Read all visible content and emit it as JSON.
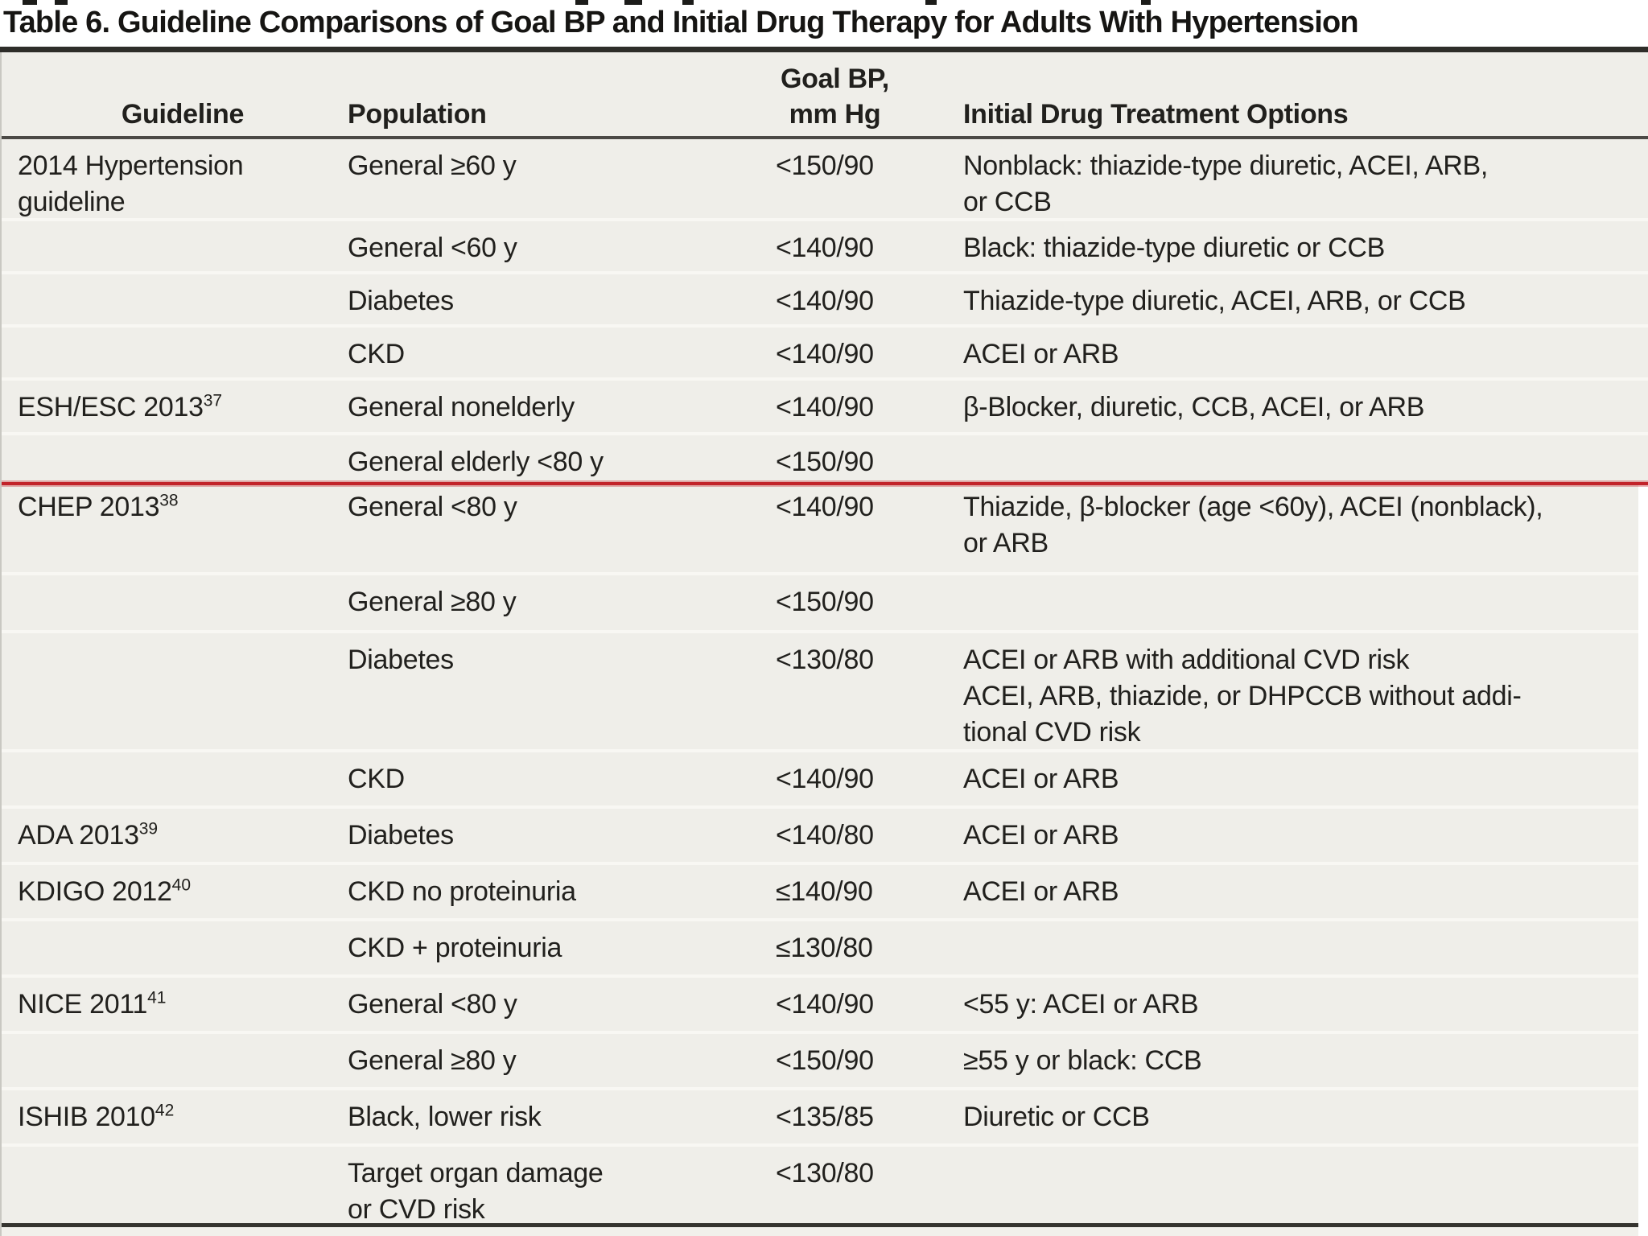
{
  "title": "Table 6. Guideline Comparisons of Goal BP and Initial Drug Therapy for Adults With Hypertension",
  "columns": {
    "guideline": "Guideline",
    "population": "Population",
    "goal_bp_line1": "Goal BP,",
    "goal_bp_line2": "mm Hg",
    "treatment": "Initial Drug Treatment Options"
  },
  "colors": {
    "table_background": "#efeee9",
    "row_separator": "#f8f7f3",
    "title_rule": "#2e2d29",
    "header_rule": "#4b4945",
    "bottom_rule": "#35342f",
    "red_divider": "#c2232a",
    "text": "#21201d"
  },
  "red_divider_after_row_index": 5,
  "rows": [
    {
      "guideline": "2014 Hypertension\nguideline",
      "guideline_sup": "",
      "population": "General ≥60 y",
      "goal": "<150/90",
      "treatment": "Nonblack: thiazide-type diuretic, ACEI, ARB,\nor CCB"
    },
    {
      "guideline": "",
      "guideline_sup": "",
      "population": "General <60 y",
      "goal": "<140/90",
      "treatment": "Black: thiazide-type diuretic or CCB"
    },
    {
      "guideline": "",
      "guideline_sup": "",
      "population": "Diabetes",
      "goal": "<140/90",
      "treatment": "Thiazide-type diuretic, ACEI, ARB, or CCB"
    },
    {
      "guideline": "",
      "guideline_sup": "",
      "population": "CKD",
      "goal": "<140/90",
      "treatment": "ACEI or ARB"
    },
    {
      "guideline": "ESH/ESC 2013",
      "guideline_sup": "37",
      "population": "General nonelderly",
      "goal": "<140/90",
      "treatment": "β-Blocker, diuretic, CCB, ACEI, or ARB"
    },
    {
      "guideline": "",
      "guideline_sup": "",
      "population": "General elderly <80 y",
      "goal": "<150/90",
      "treatment": ""
    },
    {
      "guideline": "CHEP 2013",
      "guideline_sup": "38",
      "population": "General <80 y",
      "goal": "<140/90",
      "treatment": "Thiazide, β-blocker (age <60y), ACEI (nonblack),\nor ARB"
    },
    {
      "guideline": "",
      "guideline_sup": "",
      "population": "General ≥80 y",
      "goal": "<150/90",
      "treatment": ""
    },
    {
      "guideline": "",
      "guideline_sup": "",
      "population": "Diabetes",
      "goal": "<130/80",
      "treatment": "ACEI or ARB with additional CVD risk\nACEI, ARB, thiazide, or DHPCCB without addi-\ntional CVD risk"
    },
    {
      "guideline": "",
      "guideline_sup": "",
      "population": "CKD",
      "goal": "<140/90",
      "treatment": "ACEI or ARB"
    },
    {
      "guideline": "ADA 2013",
      "guideline_sup": "39",
      "population": "Diabetes",
      "goal": "<140/80",
      "treatment": "ACEI or ARB"
    },
    {
      "guideline": "KDIGO 2012",
      "guideline_sup": "40",
      "population": "CKD no proteinuria",
      "goal": "≤140/90",
      "treatment": "ACEI or ARB"
    },
    {
      "guideline": "",
      "guideline_sup": "",
      "population": "CKD + proteinuria",
      "goal": "≤130/80",
      "treatment": ""
    },
    {
      "guideline": "NICE 2011",
      "guideline_sup": "41",
      "population": "General <80 y",
      "goal": "<140/90",
      "treatment": "<55 y: ACEI or ARB"
    },
    {
      "guideline": "",
      "guideline_sup": "",
      "population": "General ≥80 y",
      "goal": "<150/90",
      "treatment": "≥55 y or black: CCB"
    },
    {
      "guideline": "ISHIB 2010",
      "guideline_sup": "42",
      "population": "Black, lower risk",
      "goal": "<135/85",
      "treatment": "Diuretic or CCB"
    },
    {
      "guideline": "",
      "guideline_sup": "",
      "population": "Target organ damage\nor CVD risk",
      "goal": "<130/80",
      "treatment": ""
    }
  ]
}
